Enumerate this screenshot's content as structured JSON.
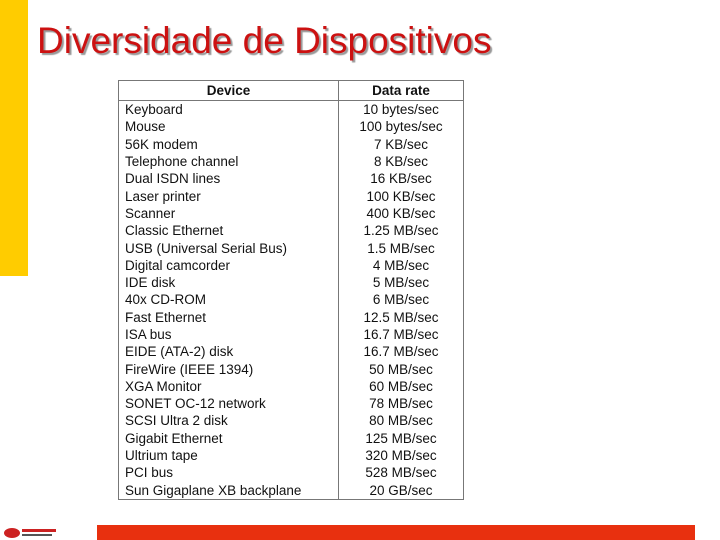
{
  "header": {
    "title": "Diversidade de Dispositivos"
  },
  "table": {
    "columns": [
      "Device",
      "Data rate"
    ],
    "rows": [
      [
        "Keyboard",
        "10 bytes/sec"
      ],
      [
        "Mouse",
        "100 bytes/sec"
      ],
      [
        "56K modem",
        "7 KB/sec"
      ],
      [
        "Telephone channel",
        "8 KB/sec"
      ],
      [
        "Dual ISDN lines",
        "16 KB/sec"
      ],
      [
        "Laser printer",
        "100 KB/sec"
      ],
      [
        "Scanner",
        "400 KB/sec"
      ],
      [
        "Classic Ethernet",
        "1.25 MB/sec"
      ],
      [
        "USB (Universal Serial Bus)",
        "1.5 MB/sec"
      ],
      [
        "Digital camcorder",
        "4 MB/sec"
      ],
      [
        "IDE disk",
        "5 MB/sec"
      ],
      [
        "40x CD-ROM",
        "6 MB/sec"
      ],
      [
        "Fast Ethernet",
        "12.5 MB/sec"
      ],
      [
        "ISA bus",
        "16.7 MB/sec"
      ],
      [
        "EIDE (ATA-2) disk",
        "16.7 MB/sec"
      ],
      [
        "FireWire (IEEE 1394)",
        "50 MB/sec"
      ],
      [
        "XGA Monitor",
        "60 MB/sec"
      ],
      [
        "SONET OC-12 network",
        "78 MB/sec"
      ],
      [
        "SCSI Ultra 2 disk",
        "80 MB/sec"
      ],
      [
        "Gigabit Ethernet",
        "125 MB/sec"
      ],
      [
        "Ultrium tape",
        "320 MB/sec"
      ],
      [
        "PCI bus",
        "528 MB/sec"
      ],
      [
        "Sun Gigaplane XB backplane",
        "20 GB/sec"
      ]
    ]
  }
}
